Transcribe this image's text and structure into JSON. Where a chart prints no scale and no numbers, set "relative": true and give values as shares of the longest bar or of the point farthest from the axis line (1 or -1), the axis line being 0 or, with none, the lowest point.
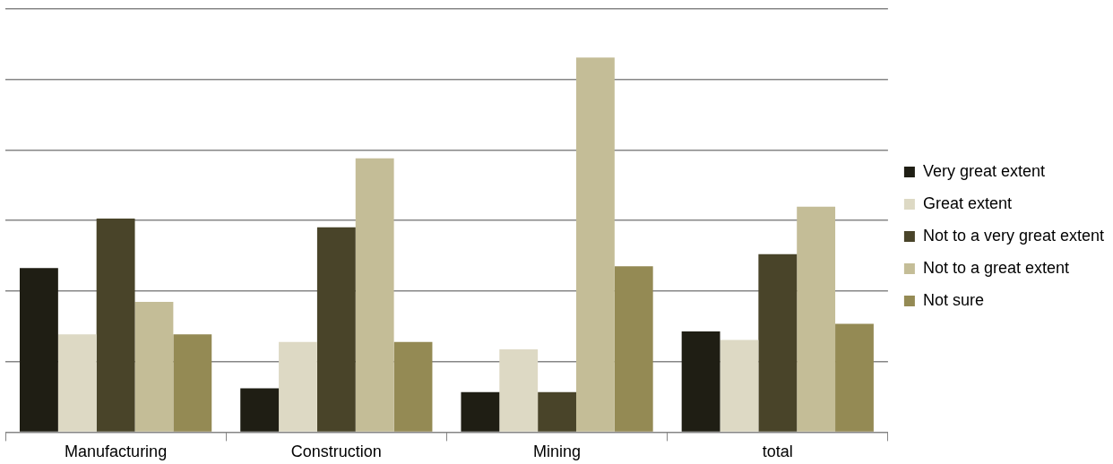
{
  "chart_data": {
    "type": "bar",
    "relative": true,
    "categories": [
      "Manufacturing",
      "Construction",
      "Mining",
      "total"
    ],
    "series": [
      {
        "name": "Very great extent",
        "color": "#1f1e14",
        "values": [
          0.438,
          0.117,
          0.107,
          0.269
        ]
      },
      {
        "name": "Great extent",
        "color": "#ddd9c4",
        "values": [
          0.261,
          0.241,
          0.221,
          0.246
        ]
      },
      {
        "name": "Not to a very great extent",
        "color": "#494429",
        "values": [
          0.57,
          0.547,
          0.107,
          0.475
        ]
      },
      {
        "name": "Not to a great extent",
        "color": "#c4bd97",
        "values": [
          0.348,
          0.731,
          1,
          0.602
        ]
      },
      {
        "name": "Not sure",
        "color": "#948a54",
        "values": [
          0.261,
          0.241,
          0.443,
          0.289
        ]
      }
    ],
    "grid": "y",
    "legend": "right"
  }
}
